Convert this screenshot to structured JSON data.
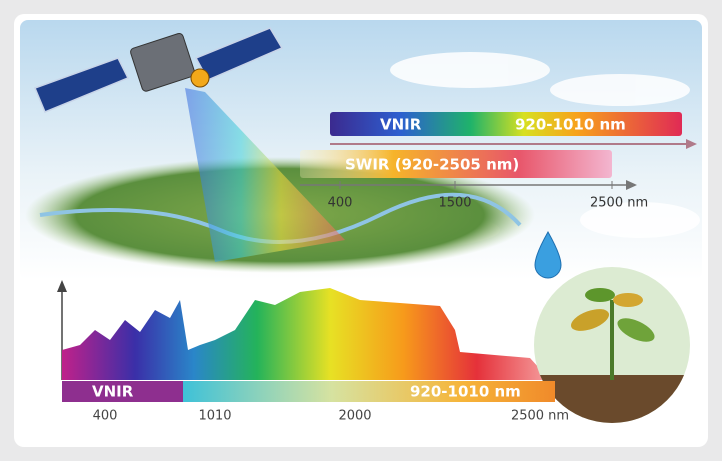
{
  "top_scale": {
    "vnir_band": {
      "name": "VNIR",
      "range": "920-1010 nm"
    },
    "swir_band": {
      "label": "SWIR (920-2505 nm)"
    },
    "ticks": [
      "400",
      "1500",
      "2500 nm"
    ]
  },
  "bottom_scale": {
    "band": {
      "name": "VNIR",
      "range": "920-1010 nm"
    },
    "ticks": [
      "400",
      "1010",
      "2000",
      "2500 nm"
    ]
  }
}
